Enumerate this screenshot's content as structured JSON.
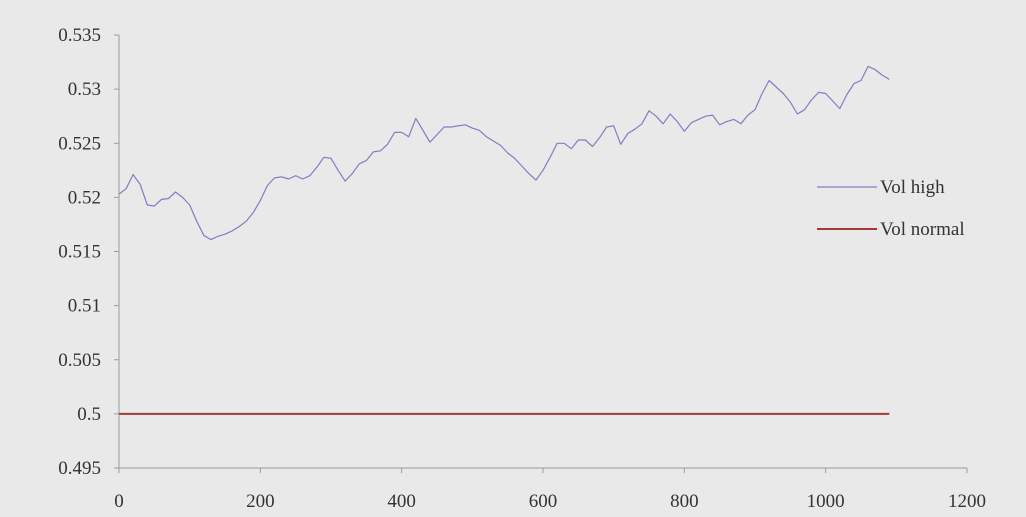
{
  "chart_data": {
    "type": "line",
    "title": "",
    "xlabel": "",
    "ylabel": "",
    "xlim": [
      0,
      1200
    ],
    "ylim": [
      0.495,
      0.535
    ],
    "x_ticks": [
      0,
      200,
      400,
      600,
      800,
      1000,
      1200
    ],
    "x_tick_labels": [
      "0",
      "200",
      "400",
      "600",
      "800",
      "1000",
      "1200"
    ],
    "y_ticks": [
      0.495,
      0.5,
      0.505,
      0.51,
      0.515,
      0.52,
      0.525,
      0.53,
      0.535
    ],
    "y_tick_labels": [
      "0.495",
      "0.5",
      "0.505",
      "0.51",
      "0.515",
      "0.52",
      "0.525",
      "0.53",
      "0.535"
    ],
    "grid": false,
    "legend_position": "right",
    "series": [
      {
        "name": "Vol high",
        "color": "#7f7fc2",
        "x": [
          0,
          10,
          20,
          30,
          40,
          50,
          60,
          70,
          80,
          90,
          100,
          110,
          120,
          130,
          140,
          150,
          160,
          170,
          180,
          190,
          200,
          210,
          220,
          230,
          240,
          250,
          260,
          270,
          280,
          290,
          300,
          310,
          320,
          330,
          340,
          350,
          360,
          370,
          380,
          390,
          400,
          410,
          420,
          430,
          440,
          450,
          460,
          470,
          480,
          490,
          500,
          510,
          520,
          530,
          540,
          550,
          560,
          570,
          580,
          590,
          600,
          610,
          620,
          630,
          640,
          650,
          660,
          670,
          680,
          690,
          700,
          710,
          720,
          730,
          740,
          750,
          760,
          770,
          780,
          790,
          800,
          810,
          820,
          830,
          840,
          850,
          860,
          870,
          880,
          890,
          900,
          910,
          920,
          930,
          940,
          950,
          960,
          970,
          980,
          990,
          1000,
          1010,
          1020,
          1030,
          1040,
          1050,
          1060,
          1070,
          1080,
          1090
        ],
        "values": [
          0.5203,
          0.5208,
          0.5221,
          0.5212,
          0.5193,
          0.5192,
          0.5198,
          0.5199,
          0.5205,
          0.52,
          0.5193,
          0.5178,
          0.5165,
          0.5161,
          0.5164,
          0.5166,
          0.5169,
          0.5173,
          0.5178,
          0.5186,
          0.5197,
          0.5211,
          0.5218,
          0.5219,
          0.5217,
          0.522,
          0.5217,
          0.522,
          0.5228,
          0.5237,
          0.5236,
          0.5225,
          0.5215,
          0.5222,
          0.5231,
          0.5234,
          0.5242,
          0.5243,
          0.5249,
          0.526,
          0.526,
          0.5256,
          0.5273,
          0.5262,
          0.5251,
          0.5258,
          0.5265,
          0.5265,
          0.5266,
          0.5267,
          0.5264,
          0.5262,
          0.5256,
          0.5252,
          0.5248,
          0.5241,
          0.5236,
          0.5229,
          0.5222,
          0.5216,
          0.5225,
          0.5237,
          0.525,
          0.525,
          0.5245,
          0.5253,
          0.5253,
          0.5247,
          0.5255,
          0.5265,
          0.5266,
          0.5249,
          0.5259,
          0.5263,
          0.5268,
          0.528,
          0.5275,
          0.5268,
          0.5277,
          0.527,
          0.5261,
          0.5269,
          0.5272,
          0.5275,
          0.5276,
          0.5267,
          0.527,
          0.5272,
          0.5268,
          0.5276,
          0.5281,
          0.5296,
          0.5308,
          0.5302,
          0.5296,
          0.5288,
          0.5277,
          0.5281,
          0.529,
          0.5297,
          0.5296,
          0.5289,
          0.5282,
          0.5295,
          0.5305,
          0.5308,
          0.5321,
          0.5318,
          0.5313,
          0.5309
        ]
      },
      {
        "name": "Vol normal",
        "color": "#a23a3a",
        "x": [
          0,
          1090
        ],
        "values": [
          0.5,
          0.5
        ]
      }
    ]
  }
}
